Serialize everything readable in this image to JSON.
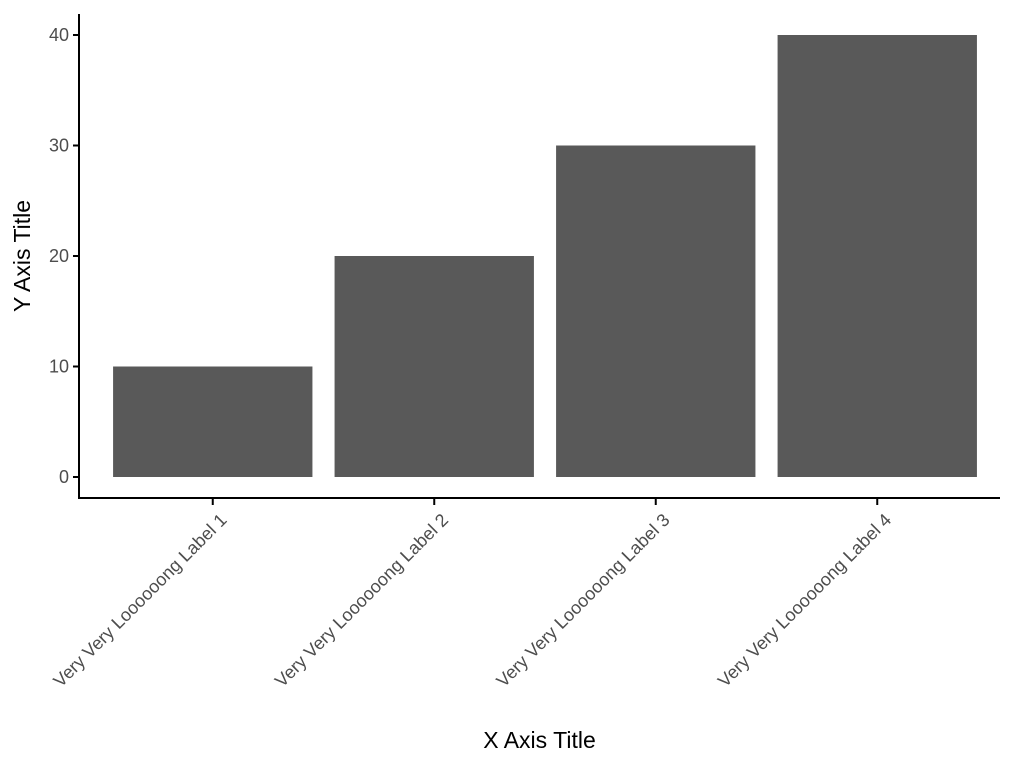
{
  "chart_data": {
    "type": "bar",
    "categories": [
      "Very Very Loooooong Label 1",
      "Very Very Loooooong Label 2",
      "Very Very Loooooong Label 3",
      "Very Very Loooooong Label 4"
    ],
    "values": [
      10,
      20,
      30,
      40
    ],
    "title": "",
    "xlabel": "X Axis Title",
    "ylabel": "Y Axis Title",
    "ylim": [
      0,
      40
    ],
    "yticks": [
      0,
      10,
      20,
      30,
      40
    ],
    "grid": false,
    "legend": "none",
    "x_tick_label_rotation": 45,
    "colors": {
      "bar": "#595959",
      "axis_line": "#000000",
      "tick_label": "#4d4d4d",
      "axis_title": "#000000",
      "background": "#ffffff"
    }
  }
}
